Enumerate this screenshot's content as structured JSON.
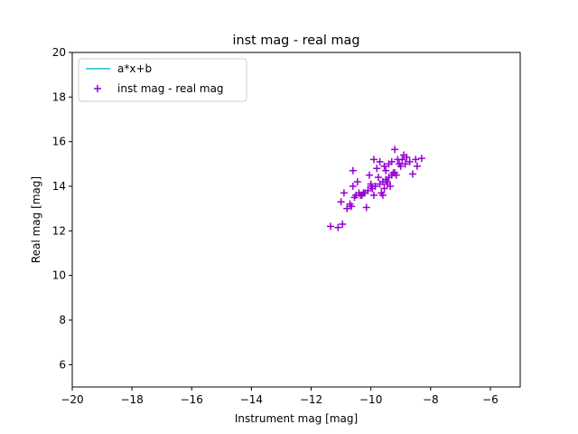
{
  "chart_data": {
    "type": "scatter",
    "title": "inst mag - real mag",
    "xlabel": "Instrument mag [mag]",
    "ylabel": "Real mag [mag]",
    "xlim": [
      -20,
      -5
    ],
    "ylim": [
      5,
      20
    ],
    "xticks": [
      "−20",
      "−18",
      "−16",
      "−14",
      "−12",
      "−10",
      "−8",
      "−6"
    ],
    "yticks": [
      "6",
      "8",
      "10",
      "12",
      "14",
      "16",
      "18",
      "20"
    ],
    "xtick_values": [
      -20,
      -18,
      -16,
      -14,
      -12,
      -10,
      -8,
      -6
    ],
    "ytick_values": [
      6,
      8,
      10,
      12,
      14,
      16,
      18,
      20
    ],
    "grid": false,
    "legend_position": "top-left",
    "series": [
      {
        "name": "a*x+b",
        "kind": "line",
        "color": "#17becf",
        "x": [],
        "y": []
      },
      {
        "name": "inst mag - real mag",
        "kind": "scatter",
        "marker": "+",
        "color": "#9400d3",
        "x": [
          -11.35,
          -11.1,
          -10.95,
          -10.8,
          -10.65,
          -10.55,
          -10.4,
          -10.25,
          -10.1,
          -9.95,
          -9.85,
          -9.7,
          -9.6,
          -9.5,
          -9.4,
          -9.3,
          -9.2,
          -9.0,
          -8.85,
          -8.7,
          -8.5,
          -8.3,
          -10.9,
          -10.7,
          -10.5,
          -10.3,
          -10.15,
          -10.0,
          -9.9,
          -9.75,
          -9.65,
          -9.55,
          -9.45,
          -9.35,
          -9.25,
          -9.15,
          -9.05,
          -8.95,
          -8.8,
          -8.6,
          -8.45,
          -10.6,
          -10.35,
          -10.05,
          -9.8,
          -9.5,
          -9.3,
          -9.1,
          -9.6,
          -9.4,
          -10.2,
          -9.9,
          -11.0,
          -9.55,
          -8.9,
          -10.45,
          -9.7,
          -9.2,
          -10.0,
          -9.45,
          -10.6
        ],
        "y": [
          12.2,
          12.15,
          12.3,
          13.0,
          13.1,
          13.5,
          13.7,
          13.7,
          13.8,
          13.9,
          14.0,
          14.1,
          14.2,
          14.3,
          14.4,
          14.5,
          14.6,
          14.9,
          15.0,
          15.1,
          15.2,
          15.25,
          13.7,
          13.2,
          13.6,
          13.6,
          13.05,
          14.0,
          13.6,
          14.4,
          13.7,
          13.9,
          14.1,
          14.0,
          14.6,
          14.5,
          15.0,
          15.2,
          15.3,
          14.55,
          14.9,
          14.7,
          13.6,
          14.5,
          14.8,
          14.7,
          15.1,
          15.2,
          13.6,
          15.0,
          13.7,
          15.2,
          13.3,
          14.9,
          15.4,
          14.2,
          15.1,
          15.65,
          14.1,
          14.2,
          14.0
        ]
      }
    ]
  }
}
